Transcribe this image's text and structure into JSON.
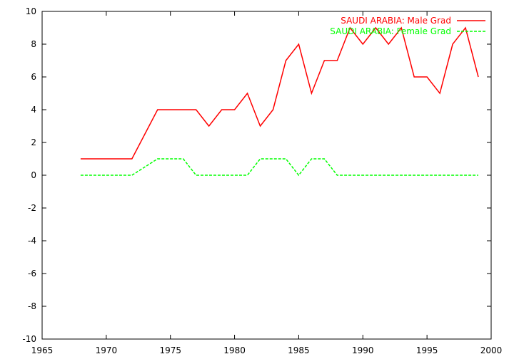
{
  "chart_data": {
    "type": "line",
    "xlim": [
      1965,
      2000
    ],
    "ylim": [
      -10,
      10
    ],
    "x_ticks": [
      1965,
      1970,
      1975,
      1980,
      1985,
      1990,
      1995,
      2000
    ],
    "y_ticks": [
      -10,
      -8,
      -6,
      -4,
      -2,
      0,
      2,
      4,
      6,
      8,
      10
    ],
    "grid": false,
    "legend_position": "top-right",
    "x": [
      1968,
      1969,
      1970,
      1971,
      1972,
      1973,
      1974,
      1975,
      1976,
      1977,
      1978,
      1979,
      1980,
      1981,
      1982,
      1983,
      1984,
      1985,
      1986,
      1987,
      1988,
      1989,
      1990,
      1991,
      1992,
      1993,
      1994,
      1995,
      1996,
      1997,
      1998,
      1999
    ],
    "series": [
      {
        "name": "SAUDI ARABIA: Male Grad",
        "color": "#ff0000",
        "dash": "solid",
        "values": [
          1,
          1,
          1,
          1,
          1,
          2.5,
          4,
          4,
          4,
          4,
          3,
          4,
          4,
          5,
          3,
          4,
          7,
          8,
          5,
          7,
          7,
          9,
          8,
          9,
          8,
          9,
          6,
          6,
          5,
          8,
          9,
          6
        ]
      },
      {
        "name": "SAUDI ARABIA: Female Grad",
        "color": "#00ff00",
        "dash": "dashed",
        "values": [
          0,
          0,
          0,
          0,
          0,
          0.5,
          1,
          1,
          1,
          0,
          0,
          0,
          0,
          0,
          1,
          1,
          1,
          0,
          1,
          1,
          0,
          0,
          0,
          0,
          0,
          0,
          0,
          0,
          0,
          0,
          0,
          0
        ]
      }
    ]
  }
}
